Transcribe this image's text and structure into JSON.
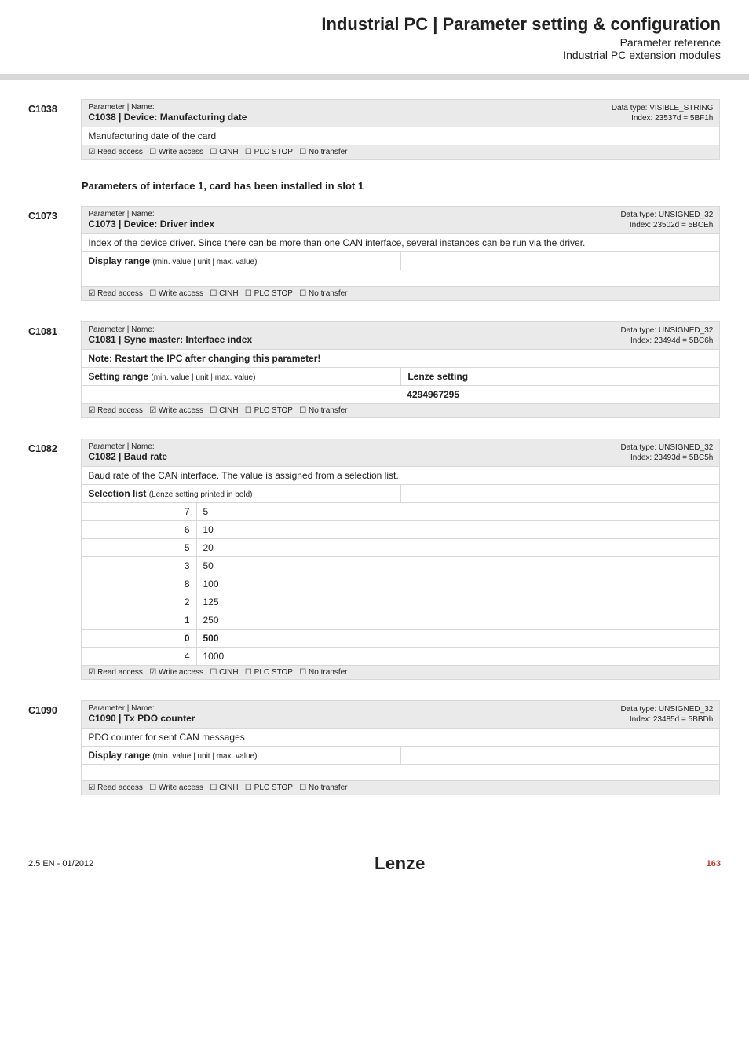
{
  "header": {
    "title": "Industrial PC | Parameter setting & configuration",
    "sub1": "Parameter reference",
    "sub2": "Industrial PC extension modules"
  },
  "subheading": "Parameters of interface 1, card has been installed in slot 1",
  "access": {
    "read_y": "☑ Read access",
    "write_n": "☐ Write access",
    "write_y": "☑ Write access",
    "cinh": "☐ CINH",
    "plcstop": "☐ PLC STOP",
    "notransfer": "☐ No transfer"
  },
  "labels": {
    "param_name": "Parameter | Name:",
    "display_range": "Display range",
    "setting_range": "Setting range",
    "range_hint": "(min. value | unit | max. value)",
    "lenze_setting": "Lenze setting",
    "selection_list": "Selection list",
    "selection_hint": "(Lenze setting printed in bold)",
    "note": "Note: Restart the IPC after changing this parameter!"
  },
  "c1038": {
    "code": "C1038",
    "title": "C1038 | Device: Manufacturing date",
    "dtype": "Data type: VISIBLE_STRING",
    "index": "Index: 23537d = 5BF1h",
    "desc": "Manufacturing date of the card"
  },
  "c1073": {
    "code": "C1073",
    "title": "C1073 | Device: Driver index",
    "dtype": "Data type: UNSIGNED_32",
    "index": "Index: 23502d = 5BCEh",
    "desc": "Index of the device driver. Since there can be more than one CAN interface, several instances can be run via the driver."
  },
  "c1081": {
    "code": "C1081",
    "title": "C1081 | Sync master: Interface index",
    "dtype": "Data type: UNSIGNED_32",
    "index": "Index: 23494d = 5BC6h",
    "lenze": "4294967295"
  },
  "c1082": {
    "code": "C1082",
    "title": "C1082 | Baud rate",
    "dtype": "Data type: UNSIGNED_32",
    "index": "Index: 23493d = 5BC5h",
    "desc": "Baud rate of the CAN interface. The value is assigned from a selection list.",
    "rows": [
      {
        "k": "7",
        "v": "5",
        "b": false
      },
      {
        "k": "6",
        "v": "10",
        "b": false
      },
      {
        "k": "5",
        "v": "20",
        "b": false
      },
      {
        "k": "3",
        "v": "50",
        "b": false
      },
      {
        "k": "8",
        "v": "100",
        "b": false
      },
      {
        "k": "2",
        "v": "125",
        "b": false
      },
      {
        "k": "1",
        "v": "250",
        "b": false
      },
      {
        "k": "0",
        "v": "500",
        "b": true
      },
      {
        "k": "4",
        "v": "1000",
        "b": false
      }
    ]
  },
  "c1090": {
    "code": "C1090",
    "title": "C1090 | Tx PDO counter",
    "dtype": "Data type: UNSIGNED_32",
    "index": "Index: 23485d = 5BBDh",
    "desc": "PDO counter for sent CAN messages"
  },
  "footer": {
    "left": "2.5 EN - 01/2012",
    "logo": "Lenze",
    "page": "163"
  }
}
